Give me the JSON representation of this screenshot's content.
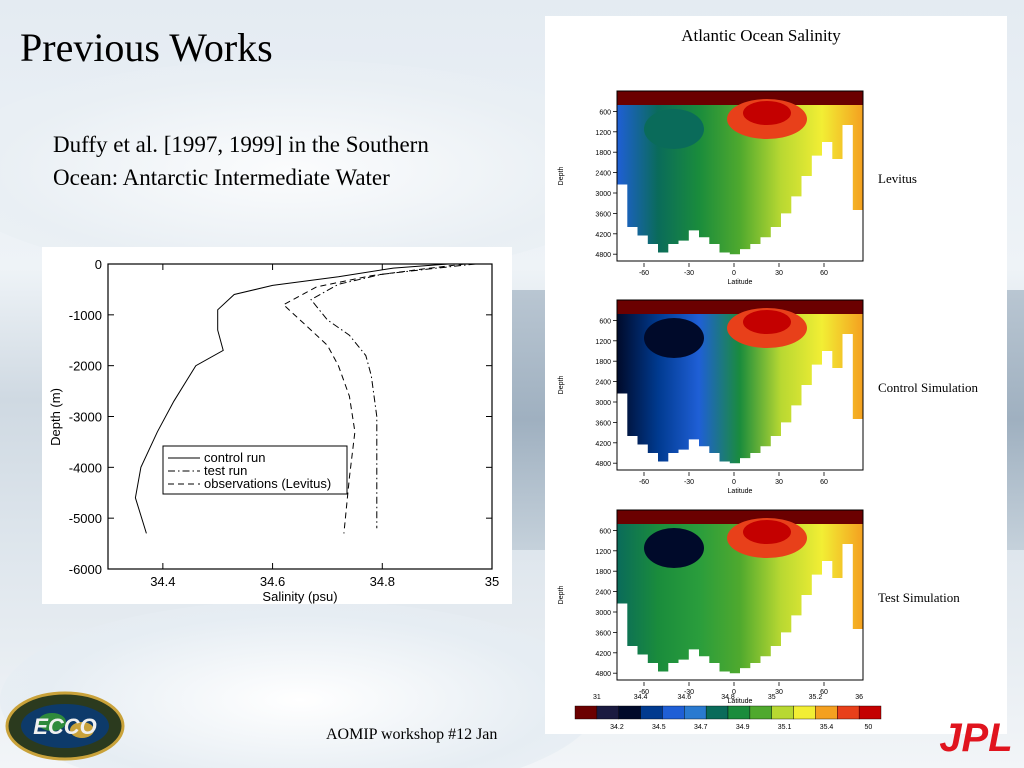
{
  "slide": {
    "title": "Previous Works",
    "body": "Duffy et al. [1997, 1999] in the Southern Ocean: Antarctic Intermediate Water",
    "footer": "AOMIP workshop #12 Jan",
    "logo_text": "ECCO",
    "jpl_text": "JPL"
  },
  "chart_data": [
    {
      "type": "line",
      "xlabel": "Salinity (psu)",
      "ylabel": "Depth (m)",
      "xlim": [
        34.3,
        35.0
      ],
      "ylim": [
        -6000,
        0
      ],
      "xticks": [
        34.4,
        34.6,
        34.8,
        35
      ],
      "xtick_labels": [
        "34.4",
        "34.6",
        "34.8",
        "35"
      ],
      "yticks": [
        0,
        -1000,
        -2000,
        -3000,
        -4000,
        -5000,
        -6000
      ],
      "ytick_labels": [
        "0",
        "-1000",
        "-2000",
        "-3000",
        "-4000",
        "-5000",
        "-6000"
      ],
      "legend_position": "lower-center",
      "series": [
        {
          "name": "control run",
          "style": "solid",
          "points": [
            [
              34.92,
              0
            ],
            [
              34.82,
              -80
            ],
            [
              34.72,
              -250
            ],
            [
              34.6,
              -420
            ],
            [
              34.53,
              -600
            ],
            [
              34.5,
              -900
            ],
            [
              34.5,
              -1300
            ],
            [
              34.51,
              -1700
            ],
            [
              34.46,
              -2000
            ],
            [
              34.42,
              -2700
            ],
            [
              34.39,
              -3300
            ],
            [
              34.36,
              -4000
            ],
            [
              34.35,
              -4600
            ],
            [
              34.37,
              -5300
            ]
          ]
        },
        {
          "name": "test run",
          "style": "dashdot",
          "points": [
            [
              34.97,
              0
            ],
            [
              34.9,
              -80
            ],
            [
              34.8,
              -200
            ],
            [
              34.72,
              -400
            ],
            [
              34.67,
              -700
            ],
            [
              34.7,
              -1100
            ],
            [
              34.74,
              -1400
            ],
            [
              34.77,
              -1800
            ],
            [
              34.78,
              -2200
            ],
            [
              34.79,
              -3000
            ],
            [
              34.79,
              -4000
            ],
            [
              34.79,
              -5200
            ]
          ]
        },
        {
          "name": "observations (Levitus)",
          "style": "dashed",
          "points": [
            [
              34.95,
              0
            ],
            [
              34.88,
              -90
            ],
            [
              34.78,
              -230
            ],
            [
              34.68,
              -450
            ],
            [
              34.62,
              -800
            ],
            [
              34.66,
              -1200
            ],
            [
              34.7,
              -1600
            ],
            [
              34.72,
              -2000
            ],
            [
              34.74,
              -2600
            ],
            [
              34.75,
              -3300
            ],
            [
              34.74,
              -4200
            ],
            [
              34.73,
              -5300
            ]
          ]
        }
      ]
    },
    {
      "type": "heatmap",
      "title": "Atlantic Ocean Salinity",
      "xlabel": "Latitude",
      "ylabel": "Depth",
      "xticks": [
        -60,
        -30,
        0,
        30,
        60
      ],
      "xtick_labels": [
        "-60",
        "-30",
        "0",
        "30",
        "60"
      ],
      "yticks": [
        600,
        1200,
        1800,
        2400,
        3000,
        3600,
        4200,
        4800
      ],
      "ytick_labels": [
        "600",
        "1200",
        "1800",
        "2400",
        "3000",
        "3600",
        "4200",
        "4800"
      ],
      "panels": [
        "Levitus",
        "Control Simulation",
        "Test Simulation"
      ],
      "colorbar": {
        "top_labels": [
          "31",
          "34.4",
          "34.6",
          "34.8",
          "35",
          "35.2",
          "36"
        ],
        "bottom_labels": [
          "34.2",
          "34.5",
          "34.7",
          "34.9",
          "35.1",
          "35.4",
          "50"
        ],
        "colors": [
          "#6b0000",
          "#1a1a40",
          "#000a2a",
          "#003a8f",
          "#1f5fd6",
          "#2a7ad0",
          "#0a6b5a",
          "#1a8c3c",
          "#4fa92e",
          "#b8d832",
          "#f2ee34",
          "#f4a020",
          "#e8401a",
          "#c40000"
        ]
      }
    }
  ]
}
